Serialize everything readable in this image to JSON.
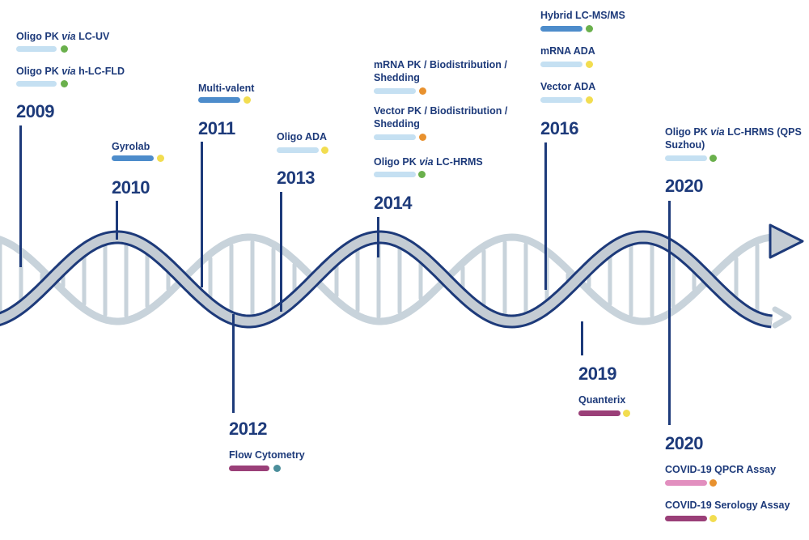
{
  "colors": {
    "navy": "#1d3a7a",
    "helix_front": "#c4ccd4",
    "helix_back": "#c8d3db",
    "bar_light_blue": "#c5e0f2",
    "bar_blue": "#4d8ccb",
    "bar_purple": "#9a3f78",
    "bar_pink": "#e28fbf",
    "dot_green": "#6ab04c",
    "dot_yellow": "#f2dd50",
    "dot_orange": "#e8912e",
    "dot_teal": "#4b8e9b"
  },
  "milestones": [
    {
      "year": "2009",
      "items": [
        {
          "label": "Oligo PK via LC-UV",
          "bar": "light",
          "dot": "green"
        },
        {
          "label": "Oligo PK via h-LC-FLD",
          "bar": "light",
          "dot": "green"
        }
      ]
    },
    {
      "year": "2010",
      "items": [
        {
          "label": "Gyrolab",
          "bar": "blue",
          "dot": "yellow"
        }
      ]
    },
    {
      "year": "2011",
      "items": [
        {
          "label": "Multi-valent",
          "bar": "blue",
          "dot": "yellow"
        }
      ]
    },
    {
      "year": "2012",
      "items": [
        {
          "label": "Flow Cytometry",
          "bar": "purple",
          "dot": "teal"
        }
      ]
    },
    {
      "year": "2013",
      "items": [
        {
          "label": "Oligo ADA",
          "bar": "light",
          "dot": "yellow"
        }
      ]
    },
    {
      "year": "2014",
      "items": [
        {
          "label": "mRNA PK / Biodistribution / Shedding",
          "bar": "light",
          "dot": "orange"
        },
        {
          "label": "Vector PK / Biodistribution / Shedding",
          "bar": "light",
          "dot": "orange"
        },
        {
          "label": "Oligo PK via LC-HRMS",
          "bar": "light",
          "dot": "green"
        }
      ]
    },
    {
      "year": "2016",
      "items": [
        {
          "label": "Hybrid LC-MS/MS",
          "bar": "blue",
          "dot": "green"
        },
        {
          "label": "mRNA ADA",
          "bar": "light",
          "dot": "yellow"
        },
        {
          "label": "Vector ADA",
          "bar": "light",
          "dot": "yellow"
        }
      ]
    },
    {
      "year": "2019",
      "items": [
        {
          "label": "Quanterix",
          "bar": "purple",
          "dot": "yellow"
        }
      ]
    },
    {
      "year": "2020",
      "items": [
        {
          "label": "Oligo PK via LC-HRMS (QPS Suzhou)",
          "bar": "light",
          "dot": "green"
        }
      ]
    },
    {
      "year": "2020",
      "items": [
        {
          "label": "COVID-19 QPCR Assay",
          "bar": "pink",
          "dot": "orange"
        },
        {
          "label": "COVID-19 Serology Assay",
          "bar": "purple",
          "dot": "yellow"
        }
      ]
    }
  ]
}
